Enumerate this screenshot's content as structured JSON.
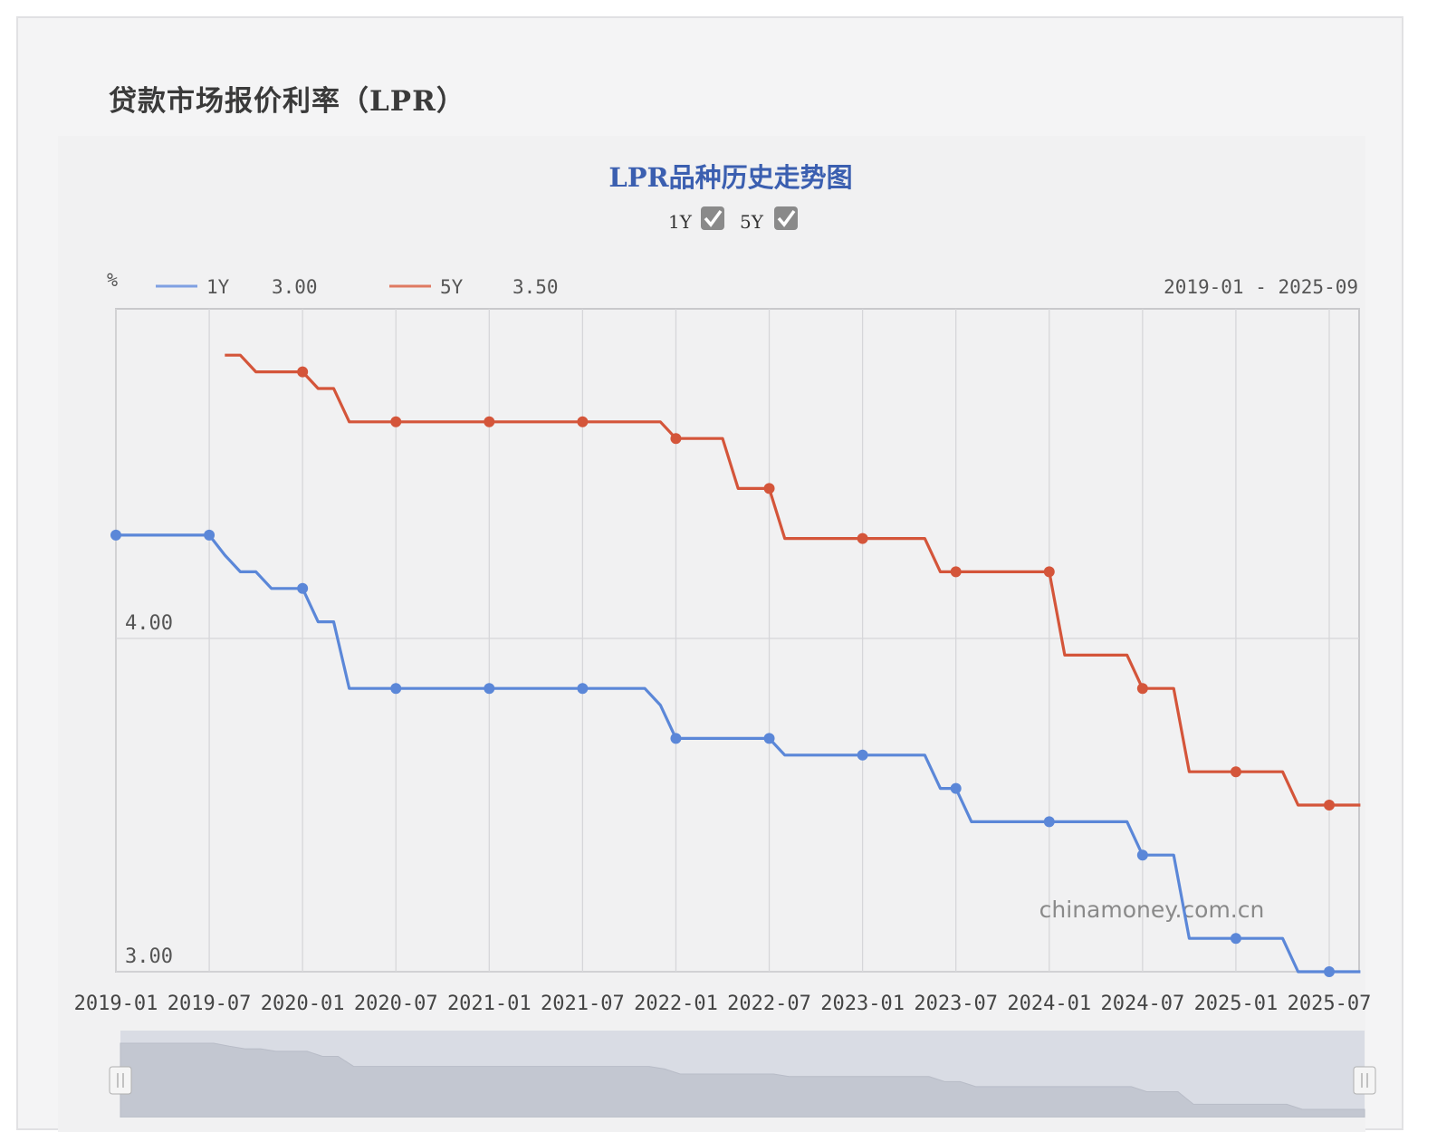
{
  "page": {
    "heading": "贷款市场报价利率（LPR）"
  },
  "chart_data": {
    "type": "line",
    "title": "LPR品种历史走势图",
    "toggles": [
      {
        "label": "1Y",
        "checked": true
      },
      {
        "label": "5Y",
        "checked": true
      }
    ],
    "unit_label": "%",
    "date_range": "2019-01 - 2025-09",
    "watermark": "chinamoney.com.cn",
    "x_ticks": [
      "2019-01",
      "2019-07",
      "2020-01",
      "2020-07",
      "2021-01",
      "2021-07",
      "2022-01",
      "2022-07",
      "2023-01",
      "2023-07",
      "2024-01",
      "2024-07",
      "2025-01",
      "2025-07"
    ],
    "y_ticks": [
      "3.00",
      "4.00"
    ],
    "ylim": [
      3.0,
      4.95
    ],
    "xlim": [
      "2019-01",
      "2025-09"
    ],
    "grid": true,
    "legend_position": "top-left",
    "colors": {
      "1Y": "#5b87d8",
      "5Y": "#d4553a"
    },
    "series": [
      {
        "name": "1Y",
        "legend_value": "3.00",
        "points": [
          [
            "2019-01",
            4.31
          ],
          [
            "2019-02",
            4.31
          ],
          [
            "2019-03",
            4.31
          ],
          [
            "2019-04",
            4.31
          ],
          [
            "2019-05",
            4.31
          ],
          [
            "2019-06",
            4.31
          ],
          [
            "2019-07",
            4.31
          ],
          [
            "2019-08",
            4.25
          ],
          [
            "2019-09",
            4.2
          ],
          [
            "2019-10",
            4.2
          ],
          [
            "2019-11",
            4.15
          ],
          [
            "2019-12",
            4.15
          ],
          [
            "2020-01",
            4.15
          ],
          [
            "2020-02",
            4.05
          ],
          [
            "2020-03",
            4.05
          ],
          [
            "2020-04",
            3.85
          ],
          [
            "2020-05",
            3.85
          ],
          [
            "2020-06",
            3.85
          ],
          [
            "2020-07",
            3.85
          ],
          [
            "2020-08",
            3.85
          ],
          [
            "2020-09",
            3.85
          ],
          [
            "2020-10",
            3.85
          ],
          [
            "2020-11",
            3.85
          ],
          [
            "2020-12",
            3.85
          ],
          [
            "2021-01",
            3.85
          ],
          [
            "2021-02",
            3.85
          ],
          [
            "2021-03",
            3.85
          ],
          [
            "2021-04",
            3.85
          ],
          [
            "2021-05",
            3.85
          ],
          [
            "2021-06",
            3.85
          ],
          [
            "2021-07",
            3.85
          ],
          [
            "2021-08",
            3.85
          ],
          [
            "2021-09",
            3.85
          ],
          [
            "2021-10",
            3.85
          ],
          [
            "2021-11",
            3.85
          ],
          [
            "2021-12",
            3.8
          ],
          [
            "2022-01",
            3.7
          ],
          [
            "2022-02",
            3.7
          ],
          [
            "2022-03",
            3.7
          ],
          [
            "2022-04",
            3.7
          ],
          [
            "2022-05",
            3.7
          ],
          [
            "2022-06",
            3.7
          ],
          [
            "2022-07",
            3.7
          ],
          [
            "2022-08",
            3.65
          ],
          [
            "2022-09",
            3.65
          ],
          [
            "2022-10",
            3.65
          ],
          [
            "2022-11",
            3.65
          ],
          [
            "2022-12",
            3.65
          ],
          [
            "2023-01",
            3.65
          ],
          [
            "2023-02",
            3.65
          ],
          [
            "2023-03",
            3.65
          ],
          [
            "2023-04",
            3.65
          ],
          [
            "2023-05",
            3.65
          ],
          [
            "2023-06",
            3.55
          ],
          [
            "2023-07",
            3.55
          ],
          [
            "2023-08",
            3.45
          ],
          [
            "2023-09",
            3.45
          ],
          [
            "2023-10",
            3.45
          ],
          [
            "2023-11",
            3.45
          ],
          [
            "2023-12",
            3.45
          ],
          [
            "2024-01",
            3.45
          ],
          [
            "2024-02",
            3.45
          ],
          [
            "2024-03",
            3.45
          ],
          [
            "2024-04",
            3.45
          ],
          [
            "2024-05",
            3.45
          ],
          [
            "2024-06",
            3.45
          ],
          [
            "2024-07",
            3.35
          ],
          [
            "2024-08",
            3.35
          ],
          [
            "2024-09",
            3.35
          ],
          [
            "2024-10",
            3.1
          ],
          [
            "2024-11",
            3.1
          ],
          [
            "2024-12",
            3.1
          ],
          [
            "2025-01",
            3.1
          ],
          [
            "2025-02",
            3.1
          ],
          [
            "2025-03",
            3.1
          ],
          [
            "2025-04",
            3.1
          ],
          [
            "2025-05",
            3.0
          ],
          [
            "2025-06",
            3.0
          ],
          [
            "2025-07",
            3.0
          ],
          [
            "2025-08",
            3.0
          ],
          [
            "2025-09",
            3.0
          ]
        ],
        "markers": [
          "2019-01",
          "2019-07",
          "2020-01",
          "2020-07",
          "2021-01",
          "2021-07",
          "2022-01",
          "2022-07",
          "2023-01",
          "2023-07",
          "2024-01",
          "2024-07",
          "2025-01",
          "2025-07"
        ]
      },
      {
        "name": "5Y",
        "legend_value": "3.50",
        "points": [
          [
            "2019-08",
            4.85
          ],
          [
            "2019-09",
            4.85
          ],
          [
            "2019-10",
            4.8
          ],
          [
            "2019-11",
            4.8
          ],
          [
            "2019-12",
            4.8
          ],
          [
            "2020-01",
            4.8
          ],
          [
            "2020-02",
            4.75
          ],
          [
            "2020-03",
            4.75
          ],
          [
            "2020-04",
            4.65
          ],
          [
            "2020-05",
            4.65
          ],
          [
            "2020-06",
            4.65
          ],
          [
            "2020-07",
            4.65
          ],
          [
            "2020-08",
            4.65
          ],
          [
            "2020-09",
            4.65
          ],
          [
            "2020-10",
            4.65
          ],
          [
            "2020-11",
            4.65
          ],
          [
            "2020-12",
            4.65
          ],
          [
            "2021-01",
            4.65
          ],
          [
            "2021-02",
            4.65
          ],
          [
            "2021-03",
            4.65
          ],
          [
            "2021-04",
            4.65
          ],
          [
            "2021-05",
            4.65
          ],
          [
            "2021-06",
            4.65
          ],
          [
            "2021-07",
            4.65
          ],
          [
            "2021-08",
            4.65
          ],
          [
            "2021-09",
            4.65
          ],
          [
            "2021-10",
            4.65
          ],
          [
            "2021-11",
            4.65
          ],
          [
            "2021-12",
            4.65
          ],
          [
            "2022-01",
            4.6
          ],
          [
            "2022-02",
            4.6
          ],
          [
            "2022-03",
            4.6
          ],
          [
            "2022-04",
            4.6
          ],
          [
            "2022-05",
            4.45
          ],
          [
            "2022-06",
            4.45
          ],
          [
            "2022-07",
            4.45
          ],
          [
            "2022-08",
            4.3
          ],
          [
            "2022-09",
            4.3
          ],
          [
            "2022-10",
            4.3
          ],
          [
            "2022-11",
            4.3
          ],
          [
            "2022-12",
            4.3
          ],
          [
            "2023-01",
            4.3
          ],
          [
            "2023-02",
            4.3
          ],
          [
            "2023-03",
            4.3
          ],
          [
            "2023-04",
            4.3
          ],
          [
            "2023-05",
            4.3
          ],
          [
            "2023-06",
            4.2
          ],
          [
            "2023-07",
            4.2
          ],
          [
            "2023-08",
            4.2
          ],
          [
            "2023-09",
            4.2
          ],
          [
            "2023-10",
            4.2
          ],
          [
            "2023-11",
            4.2
          ],
          [
            "2023-12",
            4.2
          ],
          [
            "2024-01",
            4.2
          ],
          [
            "2024-02",
            3.95
          ],
          [
            "2024-03",
            3.95
          ],
          [
            "2024-04",
            3.95
          ],
          [
            "2024-05",
            3.95
          ],
          [
            "2024-06",
            3.95
          ],
          [
            "2024-07",
            3.85
          ],
          [
            "2024-08",
            3.85
          ],
          [
            "2024-09",
            3.85
          ],
          [
            "2024-10",
            3.6
          ],
          [
            "2024-11",
            3.6
          ],
          [
            "2024-12",
            3.6
          ],
          [
            "2025-01",
            3.6
          ],
          [
            "2025-02",
            3.6
          ],
          [
            "2025-03",
            3.6
          ],
          [
            "2025-04",
            3.6
          ],
          [
            "2025-05",
            3.5
          ],
          [
            "2025-06",
            3.5
          ],
          [
            "2025-07",
            3.5
          ],
          [
            "2025-08",
            3.5
          ],
          [
            "2025-09",
            3.5
          ]
        ],
        "markers": [
          "2020-01",
          "2020-07",
          "2021-01",
          "2021-07",
          "2022-01",
          "2022-07",
          "2023-01",
          "2023-07",
          "2024-01",
          "2024-07",
          "2025-01",
          "2025-07"
        ]
      }
    ],
    "navigator": {
      "series": "1Y",
      "range": [
        "2019-01",
        "2025-09"
      ]
    }
  }
}
